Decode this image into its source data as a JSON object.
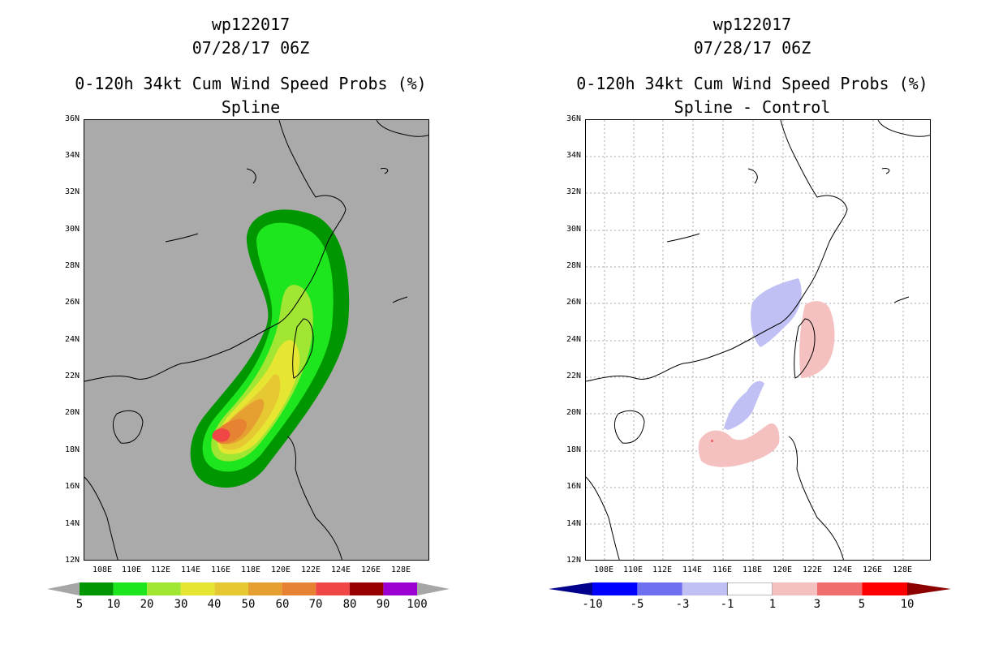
{
  "left_panel": {
    "storm_id": "wp122017",
    "datetime": "07/28/17 06Z",
    "product": "0-120h 34kt Cum Wind Speed Probs (%)",
    "subtitle": "Spline",
    "colorbar": {
      "labels": [
        "5",
        "10",
        "20",
        "30",
        "40",
        "50",
        "60",
        "70",
        "80",
        "90",
        "100"
      ],
      "colors": [
        "#009600",
        "#1ee61e",
        "#a0e632",
        "#e6e632",
        "#e6c832",
        "#e6a032",
        "#e68232",
        "#f04646",
        "#960000",
        "#9b00d2"
      ],
      "under_color": "#a6a6a6",
      "over_color": "#a6a6a6"
    },
    "background_color": "#aaaaaa"
  },
  "right_panel": {
    "storm_id": "wp122017",
    "datetime": "07/28/17 06Z",
    "product": "0-120h 34kt Cum Wind Speed Probs (%)",
    "subtitle": "Spline - Control",
    "colorbar": {
      "labels": [
        "-10",
        "-5",
        "-3",
        "-1",
        "1",
        "3",
        "5",
        "10"
      ],
      "colors": [
        "#0000ff",
        "#6e6ef0",
        "#c0c0f5",
        "#ffffff",
        "#f5c0c0",
        "#f06e6e",
        "#ff0000"
      ],
      "under_color": "#00008c",
      "over_color": "#8c0000"
    },
    "background_color": "#ffffff"
  },
  "axes": {
    "lat_labels": [
      "36N",
      "34N",
      "32N",
      "30N",
      "28N",
      "26N",
      "24N",
      "22N",
      "20N",
      "18N",
      "16N",
      "14N",
      "12N"
    ],
    "lon_labels": [
      "108E",
      "110E",
      "112E",
      "114E",
      "116E",
      "118E",
      "120E",
      "122E",
      "124E",
      "126E",
      "128E"
    ]
  }
}
